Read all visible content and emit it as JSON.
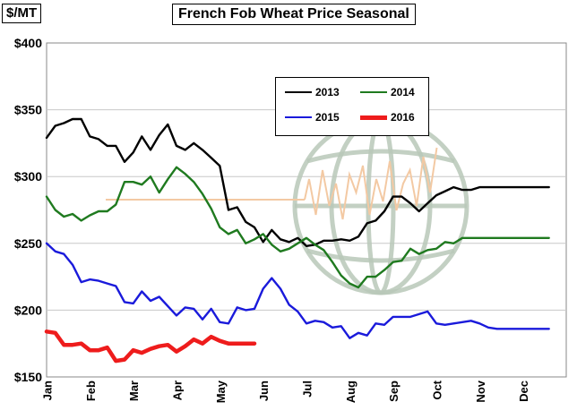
{
  "chart_data": {
    "type": "line",
    "title": "French Fob Wheat Price Seasonal",
    "ylabel": "$/MT",
    "xlabel": "",
    "ylim": [
      150,
      400
    ],
    "y_ticks": [
      150,
      200,
      250,
      300,
      350,
      400
    ],
    "y_tick_labels": [
      "$150",
      "$200",
      "$250",
      "$300",
      "$350",
      "$400"
    ],
    "x_range": [
      0,
      12
    ],
    "x_ticks": [
      0,
      1,
      2,
      3,
      4,
      5,
      6,
      7,
      8,
      9,
      10,
      11
    ],
    "x_tick_labels": [
      "Jan",
      "Feb",
      "Mar",
      "Apr",
      "May",
      "Jun",
      "Jul",
      "Aug",
      "Sep",
      "Oct",
      "Nov",
      "Dec"
    ],
    "grid": "horizontal",
    "legend_position": "top-center",
    "series": [
      {
        "name": "2013",
        "color": "#000000",
        "x": [
          0,
          0.2,
          0.4,
          0.6,
          0.8,
          1.0,
          1.2,
          1.4,
          1.6,
          1.8,
          2.0,
          2.2,
          2.4,
          2.6,
          2.8,
          3.0,
          3.2,
          3.4,
          3.6,
          3.8,
          4.0,
          4.2,
          4.4,
          4.6,
          4.8,
          5.0,
          5.2,
          5.4,
          5.6,
          5.8,
          6.0,
          6.2,
          6.4,
          6.6,
          6.8,
          7.0,
          7.2,
          7.4,
          7.6,
          7.8,
          8.0,
          8.2,
          8.4,
          8.6,
          8.8,
          9.0,
          9.2,
          9.4,
          9.6,
          9.8,
          10.0,
          10.2,
          10.4,
          10.6,
          10.8,
          11.0,
          11.2,
          11.4,
          11.6
        ],
        "y": [
          329,
          338,
          340,
          343,
          343,
          330,
          328,
          323,
          323,
          311,
          318,
          330,
          320,
          331,
          339,
          323,
          320,
          325,
          320,
          314,
          308,
          275,
          277,
          266,
          262,
          251,
          260,
          253,
          251,
          254,
          248,
          249,
          252,
          252,
          253,
          252,
          255,
          265,
          267,
          274,
          285,
          285,
          280,
          274,
          280,
          286,
          289,
          292,
          290,
          290,
          292,
          292,
          292,
          292,
          292,
          292,
          292,
          292,
          292
        ]
      },
      {
        "name": "2014",
        "color": "#1f7a1f",
        "x": [
          0,
          0.2,
          0.4,
          0.6,
          0.8,
          1.0,
          1.2,
          1.4,
          1.6,
          1.8,
          2.0,
          2.2,
          2.4,
          2.6,
          2.8,
          3.0,
          3.2,
          3.4,
          3.6,
          3.8,
          4.0,
          4.2,
          4.4,
          4.6,
          4.8,
          5.0,
          5.2,
          5.4,
          5.6,
          5.8,
          6.0,
          6.2,
          6.4,
          6.6,
          6.8,
          7.0,
          7.2,
          7.4,
          7.6,
          7.8,
          8.0,
          8.2,
          8.4,
          8.6,
          8.8,
          9.0,
          9.2,
          9.4,
          9.6,
          9.8,
          10.0,
          10.2,
          10.4,
          10.6,
          10.8,
          11.0,
          11.2,
          11.4,
          11.6
        ],
        "y": [
          285,
          275,
          270,
          272,
          267,
          271,
          274,
          274,
          279,
          296,
          296,
          294,
          300,
          288,
          298,
          307,
          302,
          296,
          287,
          276,
          262,
          257,
          260,
          250,
          253,
          257,
          249,
          244,
          246,
          250,
          254,
          249,
          245,
          236,
          226,
          220,
          217,
          225,
          225,
          230,
          236,
          237,
          246,
          242,
          245,
          246,
          251,
          250,
          254,
          254,
          254,
          254,
          254,
          254,
          254,
          254,
          254,
          254,
          254
        ]
      },
      {
        "name": "2015",
        "color": "#1a1adb",
        "x": [
          0,
          0.2,
          0.4,
          0.6,
          0.8,
          1.0,
          1.2,
          1.4,
          1.6,
          1.8,
          2.0,
          2.2,
          2.4,
          2.6,
          2.8,
          3.0,
          3.2,
          3.4,
          3.6,
          3.8,
          4.0,
          4.2,
          4.4,
          4.6,
          4.8,
          5.0,
          5.2,
          5.4,
          5.6,
          5.8,
          6.0,
          6.2,
          6.4,
          6.6,
          6.8,
          7.0,
          7.2,
          7.4,
          7.6,
          7.8,
          8.0,
          8.2,
          8.4,
          8.6,
          8.8,
          9.0,
          9.2,
          9.4,
          9.6,
          9.8,
          10.0,
          10.2,
          10.4,
          10.6,
          10.8,
          11.0,
          11.2,
          11.4,
          11.6
        ],
        "y": [
          250,
          244,
          242,
          234,
          221,
          223,
          222,
          220,
          218,
          206,
          205,
          214,
          207,
          210,
          203,
          196,
          202,
          201,
          193,
          201,
          191,
          190,
          202,
          200,
          201,
          216,
          224,
          216,
          204,
          199,
          190,
          192,
          191,
          187,
          188,
          179,
          183,
          181,
          190,
          189,
          195,
          195,
          195,
          197,
          199,
          190,
          189,
          190,
          191,
          192,
          190,
          187,
          186,
          186,
          186,
          186,
          186,
          186,
          186
        ]
      },
      {
        "name": "2016",
        "color": "#ee1c1c",
        "x": [
          0,
          0.2,
          0.4,
          0.6,
          0.8,
          1.0,
          1.2,
          1.4,
          1.6,
          1.8,
          2.0,
          2.2,
          2.4,
          2.6,
          2.8,
          3.0,
          3.2,
          3.4,
          3.6,
          3.8,
          4.0,
          4.2,
          4.4,
          4.6,
          4.8
        ],
        "y": [
          184,
          183,
          174,
          174,
          175,
          170,
          170,
          172,
          162,
          163,
          170,
          168,
          171,
          173,
          174,
          169,
          173,
          178,
          175,
          180,
          177,
          175,
          175,
          175,
          175
        ]
      }
    ]
  }
}
